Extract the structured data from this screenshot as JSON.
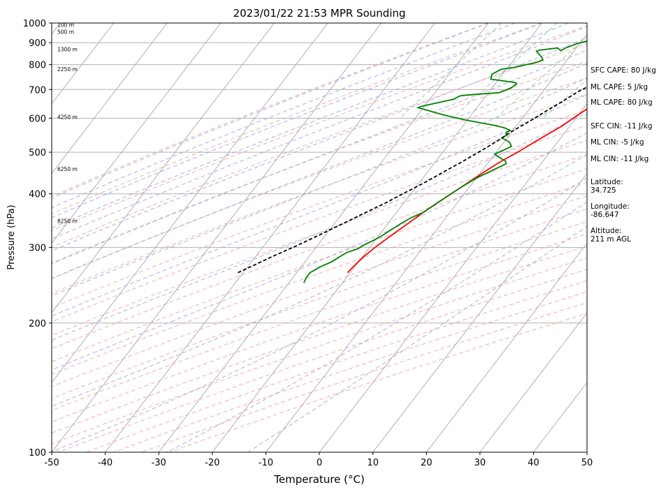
{
  "chart_data": {
    "type": "line",
    "title": "2023/01/22 21:53 MPR Sounding",
    "xlabel": "Temperature (°C)",
    "ylabel": "Pressure (hPa)",
    "xlim": [
      -50,
      50
    ],
    "ylim": [
      1000,
      100
    ],
    "y_scale": "log",
    "grid": true,
    "x_ticks": [
      -50,
      -40,
      -30,
      -20,
      -10,
      0,
      10,
      20,
      30,
      40,
      50
    ],
    "y_ticks": [
      100,
      200,
      300,
      400,
      500,
      600,
      700,
      800,
      900,
      1000
    ],
    "height_labels": [
      {
        "label": "100 m",
        "p": 988
      },
      {
        "label": "500 m",
        "p": 952
      },
      {
        "label": "1300 m",
        "p": 868
      },
      {
        "label": "2250 m",
        "p": 780
      },
      {
        "label": "4250 m",
        "p": 603
      },
      {
        "label": "6250 m",
        "p": 456
      },
      {
        "label": "8250 m",
        "p": 345
      }
    ],
    "series": [
      {
        "id": "temperature",
        "color": "#ff0000",
        "points": [
          [
            9.8,
            985
          ],
          [
            9.5,
            975
          ],
          [
            8.2,
            960
          ],
          [
            6.5,
            950
          ],
          [
            5.0,
            940
          ],
          [
            3.8,
            925
          ],
          [
            3.0,
            900
          ],
          [
            2.8,
            875
          ],
          [
            3.0,
            850
          ],
          [
            3.2,
            825
          ],
          [
            3.0,
            800
          ],
          [
            2.8,
            775
          ],
          [
            2.5,
            750
          ],
          [
            2.2,
            725
          ],
          [
            2.3,
            700
          ],
          [
            2.2,
            680
          ],
          [
            1.5,
            650
          ],
          [
            0.5,
            625
          ],
          [
            -0.5,
            600
          ],
          [
            -1.5,
            575
          ],
          [
            -3.0,
            550
          ],
          [
            -4.5,
            525
          ],
          [
            -6.0,
            500
          ],
          [
            -7.5,
            480
          ],
          [
            -8.5,
            465
          ],
          [
            -10.0,
            440
          ],
          [
            -11.5,
            415
          ],
          [
            -12.8,
            395
          ],
          [
            -13.8,
            380
          ],
          [
            -15.0,
            362
          ],
          [
            -16.0,
            345
          ],
          [
            -17.0,
            330
          ],
          [
            -18.0,
            315
          ],
          [
            -19.0,
            300
          ],
          [
            -19.8,
            285
          ],
          [
            -20.3,
            270
          ],
          [
            -20.5,
            262
          ]
        ]
      },
      {
        "id": "dewpoint",
        "color": "#008000",
        "points": [
          [
            9.5,
            985
          ],
          [
            1.0,
            975
          ],
          [
            -1.5,
            965
          ],
          [
            -3.5,
            955
          ],
          [
            -6.5,
            940
          ],
          [
            -8.0,
            920
          ],
          [
            -8.5,
            912
          ],
          [
            -10.5,
            895
          ],
          [
            -12.0,
            875
          ],
          [
            -12.5,
            862
          ],
          [
            -13.5,
            875
          ],
          [
            -16.5,
            865
          ],
          [
            -17.0,
            860
          ],
          [
            -16.0,
            845
          ],
          [
            -15.0,
            830
          ],
          [
            -14.5,
            820
          ],
          [
            -15.5,
            808
          ],
          [
            -17.5,
            797
          ],
          [
            -18.5,
            790
          ],
          [
            -21.0,
            780
          ],
          [
            -22.0,
            760
          ],
          [
            -21.5,
            740
          ],
          [
            -16.5,
            727
          ],
          [
            -16.0,
            722
          ],
          [
            -16.5,
            705
          ],
          [
            -18.0,
            688
          ],
          [
            -21.5,
            683
          ],
          [
            -24.5,
            678
          ],
          [
            -25.0,
            675
          ],
          [
            -25.5,
            665
          ],
          [
            -30.5,
            640
          ],
          [
            -31.0,
            635
          ],
          [
            -25.0,
            610
          ],
          [
            -20.5,
            595
          ],
          [
            -17.0,
            585
          ],
          [
            -14.0,
            577
          ],
          [
            -12.0,
            570
          ],
          [
            -10.5,
            562
          ],
          [
            -11.0,
            555
          ],
          [
            -10.5,
            548
          ],
          [
            -11.0,
            540
          ],
          [
            -9.0,
            528
          ],
          [
            -8.0,
            516
          ],
          [
            -9.0,
            505
          ],
          [
            -10.0,
            495
          ],
          [
            -9.0,
            488
          ],
          [
            -7.0,
            477
          ],
          [
            -6.5,
            470
          ],
          [
            -8.5,
            450
          ],
          [
            -10.0,
            435
          ],
          [
            -11.5,
            415
          ],
          [
            -12.8,
            395
          ],
          [
            -13.8,
            380
          ],
          [
            -15.0,
            362
          ],
          [
            -16.5,
            352
          ],
          [
            -17.5,
            342
          ],
          [
            -18.5,
            330
          ],
          [
            -19.5,
            318
          ],
          [
            -20.5,
            310
          ],
          [
            -21.5,
            303
          ],
          [
            -22.0,
            298
          ],
          [
            -23.5,
            292
          ],
          [
            -24.0,
            288
          ],
          [
            -24.5,
            283
          ],
          [
            -25.0,
            278
          ],
          [
            -26.5,
            270
          ],
          [
            -27.5,
            262
          ],
          [
            -27.5,
            255
          ],
          [
            -27.2,
            248
          ]
        ]
      },
      {
        "id": "parcel",
        "color": "#000000",
        "dashed": true,
        "points": [
          [
            8.5,
            985
          ],
          [
            7.5,
            960
          ],
          [
            6.0,
            920
          ],
          [
            4.5,
            880
          ],
          [
            3.0,
            840
          ],
          [
            1.5,
            800
          ],
          [
            0.0,
            760
          ],
          [
            -1.5,
            725
          ],
          [
            -3.5,
            690
          ],
          [
            -5.0,
            655
          ],
          [
            -6.5,
            625
          ],
          [
            -8.0,
            595
          ],
          [
            -10.0,
            560
          ],
          [
            -11.5,
            530
          ],
          [
            -13.0,
            505
          ],
          [
            -15.0,
            475
          ],
          [
            -17.0,
            450
          ],
          [
            -19.0,
            425
          ],
          [
            -21.0,
            405
          ],
          [
            -23.5,
            380
          ],
          [
            -26.0,
            360
          ],
          [
            -28.5,
            340
          ],
          [
            -31.0,
            322
          ],
          [
            -34.0,
            302
          ],
          [
            -37.0,
            285
          ],
          [
            -39.0,
            273
          ],
          [
            -41.0,
            262
          ]
        ]
      }
    ],
    "annotations": {
      "sfc_cape": "SFC CAPE: 80 J/kg",
      "ml_cape_1": "ML CAPE: 5 J/kg",
      "ml_cape_2": "ML CAPE: 80 J/kg",
      "sfc_cin": "SFC CIN: -11 J/kg",
      "ml_cin_1": "ML CIN: -5 J/kg",
      "ml_cin_2": "ML CIN: -11 J/kg",
      "latitude": "Latitude:\n34.725",
      "longitude": "Longitude:\n-86.647",
      "altitude": "Altitude:\n211 m AGL"
    }
  }
}
